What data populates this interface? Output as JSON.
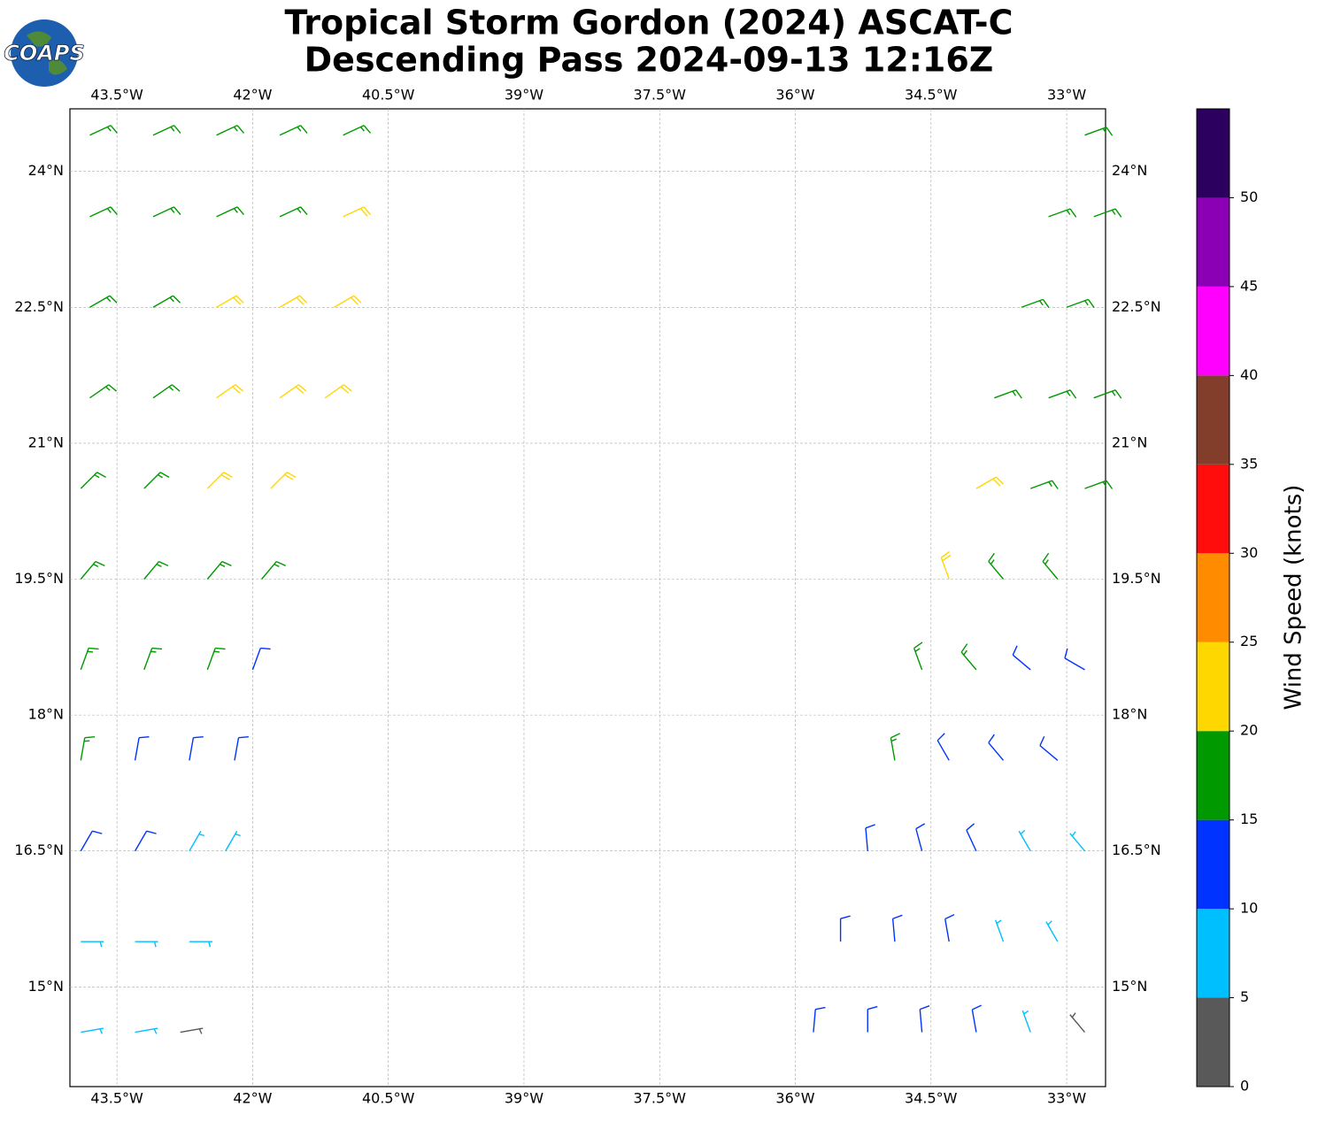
{
  "chart_data": {
    "type": "barbs",
    "title": "Tropical Storm Gordon (2024) ASCAT-C",
    "subtitle": "Descending Pass 2024-09-13 12:16Z",
    "logo_text": "COAPS",
    "xlim": [
      -44.02,
      -32.57
    ],
    "ylim": [
      13.9,
      24.69
    ],
    "xticks": [
      {
        "value": -43.5,
        "label": "43.5°W"
      },
      {
        "value": -42,
        "label": "42°W"
      },
      {
        "value": -40.5,
        "label": "40.5°W"
      },
      {
        "value": -39,
        "label": "39°W"
      },
      {
        "value": -37.5,
        "label": "37.5°W"
      },
      {
        "value": -36,
        "label": "36°W"
      },
      {
        "value": -34.5,
        "label": "34.5°W"
      },
      {
        "value": -33,
        "label": "33°W"
      }
    ],
    "yticks": [
      {
        "value": 15,
        "label": "15°N"
      },
      {
        "value": 16.5,
        "label": "16.5°N"
      },
      {
        "value": 18,
        "label": "18°N"
      },
      {
        "value": 19.5,
        "label": "19.5°N"
      },
      {
        "value": 21,
        "label": "21°N"
      },
      {
        "value": 22.5,
        "label": "22.5°N"
      },
      {
        "value": 24,
        "label": "24°N"
      }
    ],
    "grid": true,
    "colorbar": {
      "label": "Wind Speed (knots)",
      "levels": [
        0,
        5,
        10,
        15,
        20,
        25,
        30,
        35,
        40,
        45,
        50,
        55
      ],
      "colors": [
        "#595959",
        "#00bfff",
        "#0033ff",
        "#009900",
        "#ffd700",
        "#ff8c00",
        "#ff0d0d",
        "#833d2b",
        "#ff00ff",
        "#8b00b4",
        "#2b005e"
      ],
      "ticks": [
        0,
        5,
        10,
        15,
        20,
        25,
        30,
        35,
        40,
        45,
        50
      ]
    },
    "barbs": [
      {
        "lon": -43.8,
        "lat": 24.4,
        "kt": 17,
        "dir": 65
      },
      {
        "lon": -43.1,
        "lat": 24.4,
        "kt": 17,
        "dir": 65
      },
      {
        "lon": -42.4,
        "lat": 24.4,
        "kt": 17,
        "dir": 65
      },
      {
        "lon": -41.7,
        "lat": 24.4,
        "kt": 17,
        "dir": 65
      },
      {
        "lon": -41.0,
        "lat": 24.4,
        "kt": 17,
        "dir": 65
      },
      {
        "lon": -43.8,
        "lat": 23.5,
        "kt": 17,
        "dir": 65
      },
      {
        "lon": -43.1,
        "lat": 23.5,
        "kt": 17,
        "dir": 65
      },
      {
        "lon": -42.4,
        "lat": 23.5,
        "kt": 17,
        "dir": 65
      },
      {
        "lon": -41.7,
        "lat": 23.5,
        "kt": 17,
        "dir": 65
      },
      {
        "lon": -41.0,
        "lat": 23.5,
        "kt": 22,
        "dir": 65
      },
      {
        "lon": -43.8,
        "lat": 22.5,
        "kt": 17,
        "dir": 60
      },
      {
        "lon": -43.1,
        "lat": 22.5,
        "kt": 17,
        "dir": 60
      },
      {
        "lon": -42.4,
        "lat": 22.5,
        "kt": 22,
        "dir": 60
      },
      {
        "lon": -41.7,
        "lat": 22.5,
        "kt": 22,
        "dir": 60
      },
      {
        "lon": -41.1,
        "lat": 22.5,
        "kt": 22,
        "dir": 60
      },
      {
        "lon": -43.8,
        "lat": 21.5,
        "kt": 17,
        "dir": 55
      },
      {
        "lon": -43.1,
        "lat": 21.5,
        "kt": 17,
        "dir": 55
      },
      {
        "lon": -42.4,
        "lat": 21.5,
        "kt": 22,
        "dir": 55
      },
      {
        "lon": -41.7,
        "lat": 21.5,
        "kt": 22,
        "dir": 55
      },
      {
        "lon": -41.2,
        "lat": 21.5,
        "kt": 22,
        "dir": 55
      },
      {
        "lon": -43.9,
        "lat": 20.5,
        "kt": 17,
        "dir": 45
      },
      {
        "lon": -43.2,
        "lat": 20.5,
        "kt": 17,
        "dir": 45
      },
      {
        "lon": -42.5,
        "lat": 20.5,
        "kt": 22,
        "dir": 45
      },
      {
        "lon": -41.8,
        "lat": 20.5,
        "kt": 22,
        "dir": 45
      },
      {
        "lon": -43.9,
        "lat": 19.5,
        "kt": 17,
        "dir": 40
      },
      {
        "lon": -43.2,
        "lat": 19.5,
        "kt": 17,
        "dir": 40
      },
      {
        "lon": -42.5,
        "lat": 19.5,
        "kt": 17,
        "dir": 40
      },
      {
        "lon": -41.9,
        "lat": 19.5,
        "kt": 17,
        "dir": 40
      },
      {
        "lon": -43.9,
        "lat": 18.5,
        "kt": 17,
        "dir": 20
      },
      {
        "lon": -43.2,
        "lat": 18.5,
        "kt": 17,
        "dir": 20
      },
      {
        "lon": -42.5,
        "lat": 18.5,
        "kt": 17,
        "dir": 20
      },
      {
        "lon": -42.0,
        "lat": 18.5,
        "kt": 12,
        "dir": 20
      },
      {
        "lon": -43.9,
        "lat": 17.5,
        "kt": 17,
        "dir": 10
      },
      {
        "lon": -43.3,
        "lat": 17.5,
        "kt": 12,
        "dir": 10
      },
      {
        "lon": -42.7,
        "lat": 17.5,
        "kt": 12,
        "dir": 10
      },
      {
        "lon": -42.2,
        "lat": 17.5,
        "kt": 12,
        "dir": 10
      },
      {
        "lon": -43.9,
        "lat": 16.5,
        "kt": 12,
        "dir": 30
      },
      {
        "lon": -43.3,
        "lat": 16.5,
        "kt": 12,
        "dir": 30
      },
      {
        "lon": -42.7,
        "lat": 16.5,
        "kt": 7,
        "dir": 30
      },
      {
        "lon": -42.3,
        "lat": 16.5,
        "kt": 7,
        "dir": 30
      },
      {
        "lon": -43.9,
        "lat": 15.5,
        "kt": 7,
        "dir": 90
      },
      {
        "lon": -43.3,
        "lat": 15.5,
        "kt": 7,
        "dir": 90
      },
      {
        "lon": -42.7,
        "lat": 15.5,
        "kt": 7,
        "dir": 90
      },
      {
        "lon": -43.9,
        "lat": 14.5,
        "kt": 7,
        "dir": 80
      },
      {
        "lon": -43.3,
        "lat": 14.5,
        "kt": 7,
        "dir": 80
      },
      {
        "lon": -42.8,
        "lat": 14.5,
        "kt": 3,
        "dir": 80
      },
      {
        "lon": -32.8,
        "lat": 24.4,
        "kt": 17,
        "dir": 70
      },
      {
        "lon": -33.2,
        "lat": 23.5,
        "kt": 17,
        "dir": 70
      },
      {
        "lon": -32.7,
        "lat": 23.5,
        "kt": 17,
        "dir": 70
      },
      {
        "lon": -33.5,
        "lat": 22.5,
        "kt": 17,
        "dir": 70
      },
      {
        "lon": -33.0,
        "lat": 22.5,
        "kt": 17,
        "dir": 70
      },
      {
        "lon": -33.8,
        "lat": 21.5,
        "kt": 17,
        "dir": 70
      },
      {
        "lon": -33.2,
        "lat": 21.5,
        "kt": 17,
        "dir": 70
      },
      {
        "lon": -32.7,
        "lat": 21.5,
        "kt": 17,
        "dir": 70
      },
      {
        "lon": -34.0,
        "lat": 20.5,
        "kt": 22,
        "dir": 60
      },
      {
        "lon": -33.4,
        "lat": 20.5,
        "kt": 17,
        "dir": 70
      },
      {
        "lon": -32.8,
        "lat": 20.5,
        "kt": 17,
        "dir": 70
      },
      {
        "lon": -34.3,
        "lat": 19.5,
        "kt": 22,
        "dir": 340
      },
      {
        "lon": -33.7,
        "lat": 19.5,
        "kt": 17,
        "dir": 320
      },
      {
        "lon": -33.1,
        "lat": 19.5,
        "kt": 17,
        "dir": 320
      },
      {
        "lon": -34.6,
        "lat": 18.5,
        "kt": 17,
        "dir": 340
      },
      {
        "lon": -34.0,
        "lat": 18.5,
        "kt": 17,
        "dir": 320
      },
      {
        "lon": -33.4,
        "lat": 18.5,
        "kt": 12,
        "dir": 310
      },
      {
        "lon": -32.8,
        "lat": 18.5,
        "kt": 12,
        "dir": 300
      },
      {
        "lon": -34.9,
        "lat": 17.5,
        "kt": 17,
        "dir": 350
      },
      {
        "lon": -34.3,
        "lat": 17.5,
        "kt": 12,
        "dir": 330
      },
      {
        "lon": -33.7,
        "lat": 17.5,
        "kt": 12,
        "dir": 320
      },
      {
        "lon": -33.1,
        "lat": 17.5,
        "kt": 12,
        "dir": 310
      },
      {
        "lon": -35.2,
        "lat": 16.5,
        "kt": 12,
        "dir": 355
      },
      {
        "lon": -34.6,
        "lat": 16.5,
        "kt": 12,
        "dir": 345
      },
      {
        "lon": -34.0,
        "lat": 16.5,
        "kt": 12,
        "dir": 335
      },
      {
        "lon": -33.4,
        "lat": 16.5,
        "kt": 7,
        "dir": 330
      },
      {
        "lon": -32.8,
        "lat": 16.5,
        "kt": 7,
        "dir": 320
      },
      {
        "lon": -35.5,
        "lat": 15.5,
        "kt": 12,
        "dir": 0
      },
      {
        "lon": -34.9,
        "lat": 15.5,
        "kt": 12,
        "dir": 355
      },
      {
        "lon": -34.3,
        "lat": 15.5,
        "kt": 12,
        "dir": 350
      },
      {
        "lon": -33.7,
        "lat": 15.5,
        "kt": 7,
        "dir": 340
      },
      {
        "lon": -33.1,
        "lat": 15.5,
        "kt": 7,
        "dir": 330
      },
      {
        "lon": -35.8,
        "lat": 14.5,
        "kt": 12,
        "dir": 5
      },
      {
        "lon": -35.2,
        "lat": 14.5,
        "kt": 12,
        "dir": 0
      },
      {
        "lon": -34.6,
        "lat": 14.5,
        "kt": 12,
        "dir": 355
      },
      {
        "lon": -34.0,
        "lat": 14.5,
        "kt": 12,
        "dir": 350
      },
      {
        "lon": -33.4,
        "lat": 14.5,
        "kt": 7,
        "dir": 340
      },
      {
        "lon": -32.8,
        "lat": 14.5,
        "kt": 3,
        "dir": 320
      }
    ]
  }
}
